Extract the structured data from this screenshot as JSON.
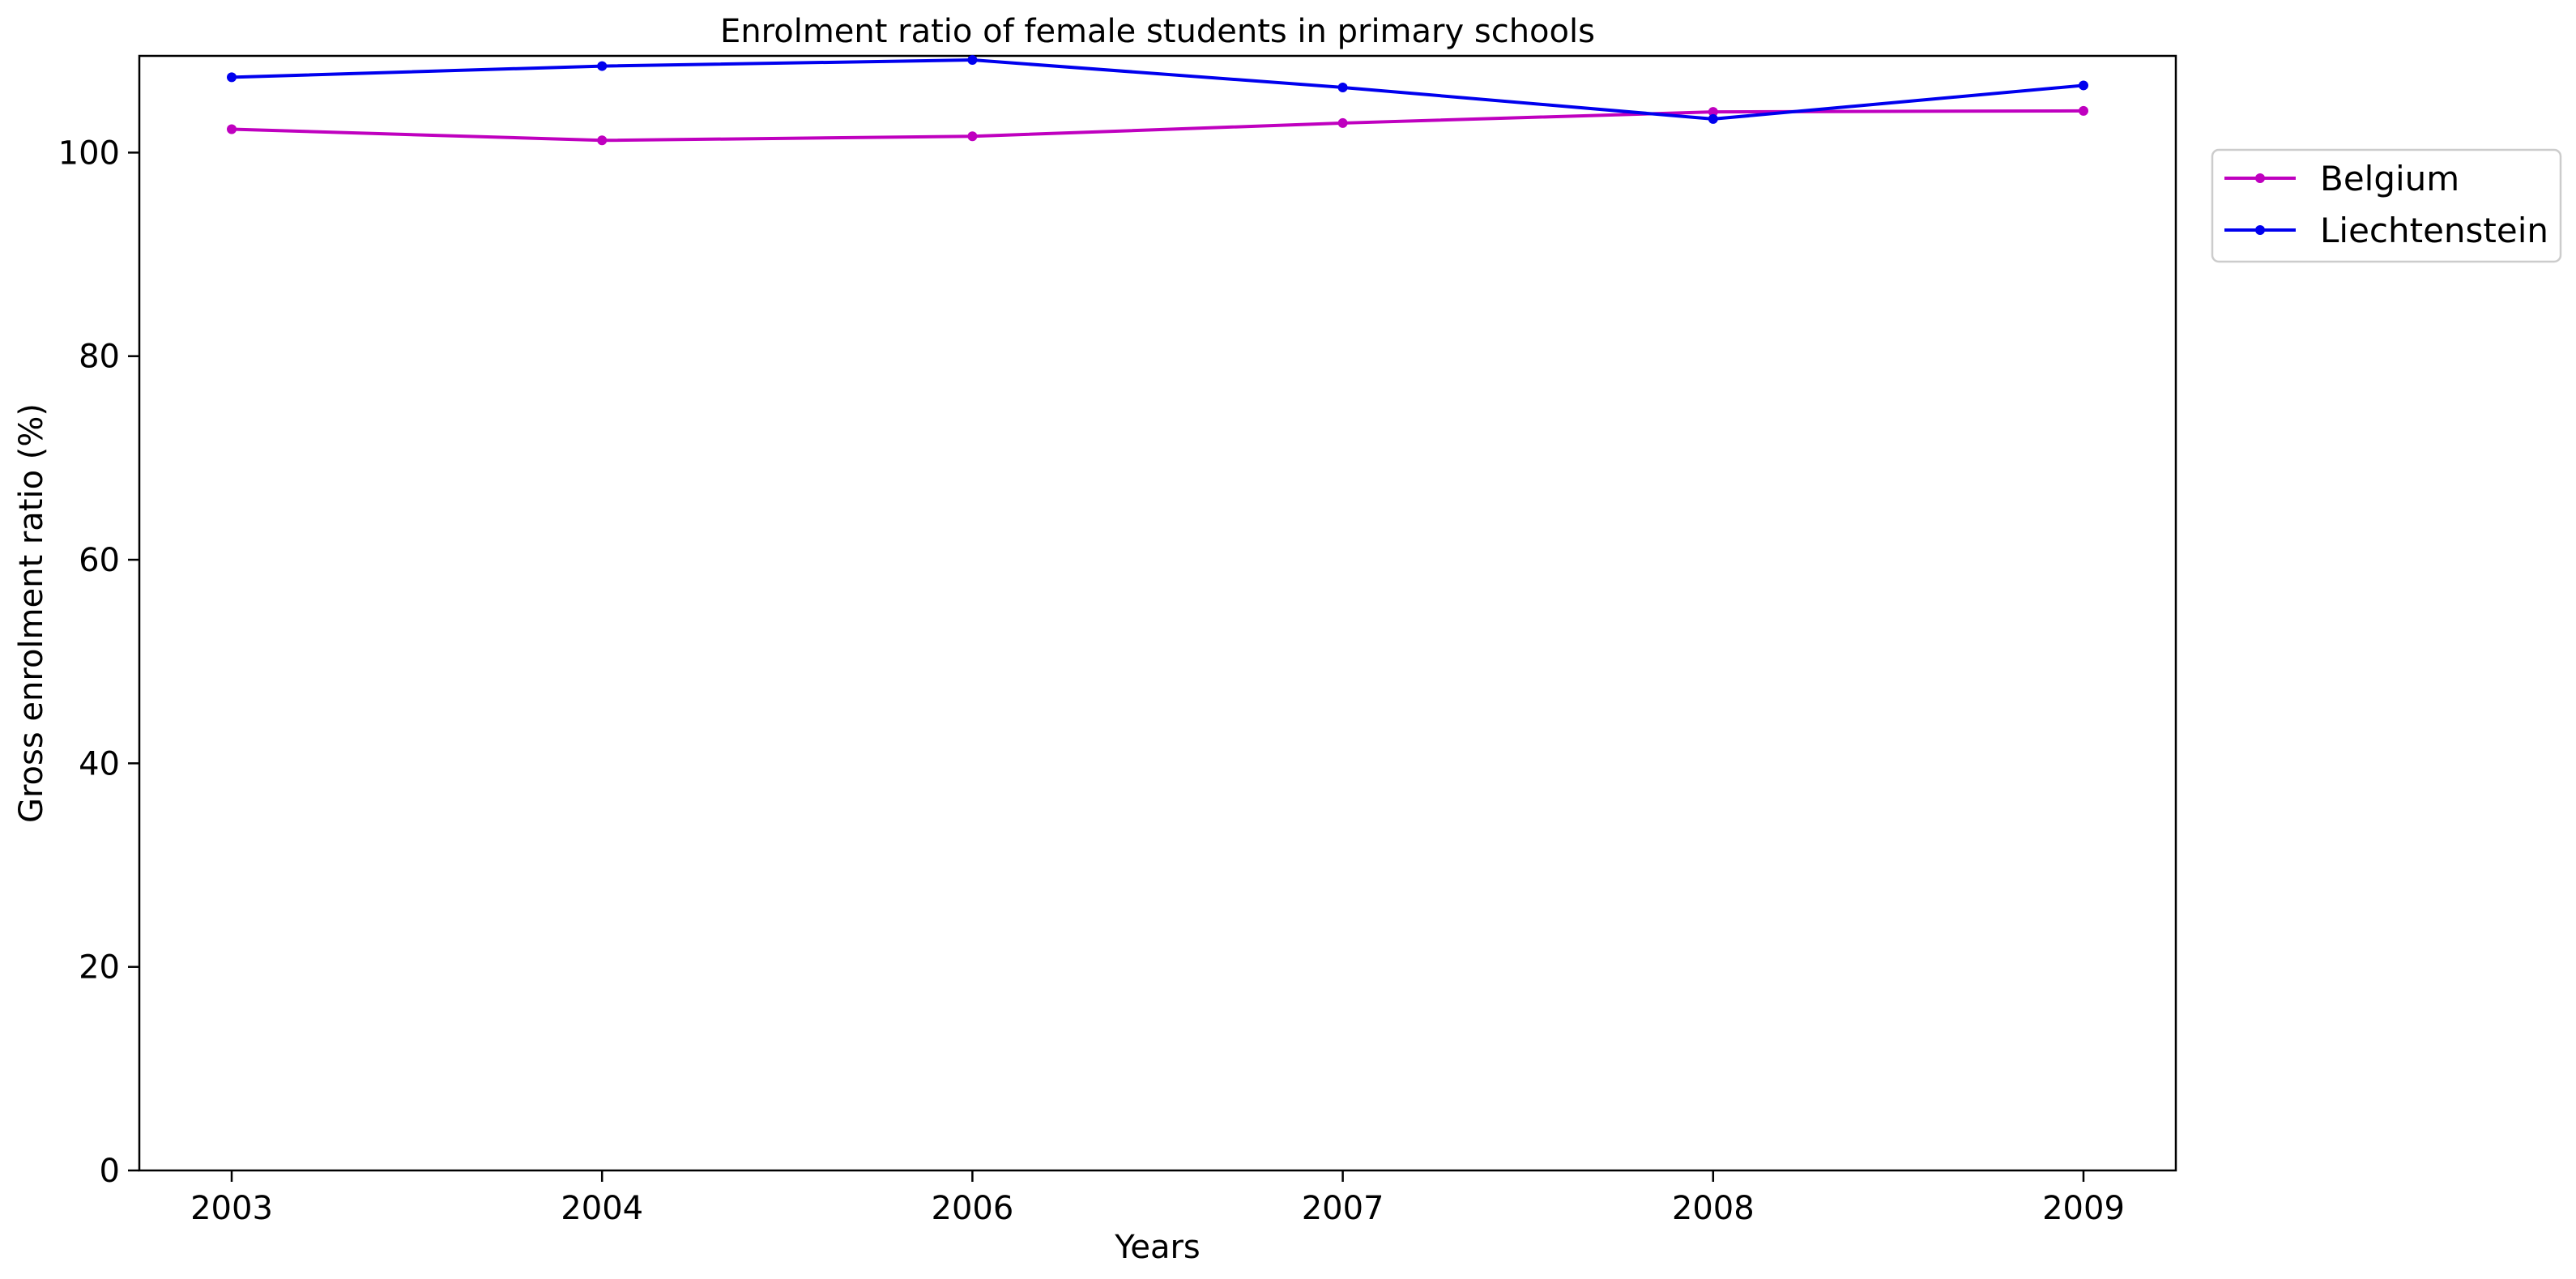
{
  "chart_data": {
    "type": "line",
    "title": "Enrolment ratio of female students in primary schools",
    "xlabel": "Years",
    "ylabel": "Gross enrolment ratio (%)",
    "categories": [
      "2003",
      "2004",
      "2006",
      "2007",
      "2008",
      "2009"
    ],
    "ylim": [
      0,
      109.5
    ],
    "yticks": [
      0,
      20,
      40,
      60,
      80,
      100
    ],
    "grid": false,
    "legend_position": "right-top-outside",
    "series": [
      {
        "name": "Belgium",
        "color": "#bf00bf",
        "values": [
          102.3,
          101.2,
          101.6,
          102.9,
          104.0,
          104.1
        ]
      },
      {
        "name": "Liechtenstein",
        "color": "#0000ee",
        "values": [
          107.4,
          108.5,
          109.1,
          106.4,
          103.3,
          106.6
        ]
      }
    ]
  }
}
